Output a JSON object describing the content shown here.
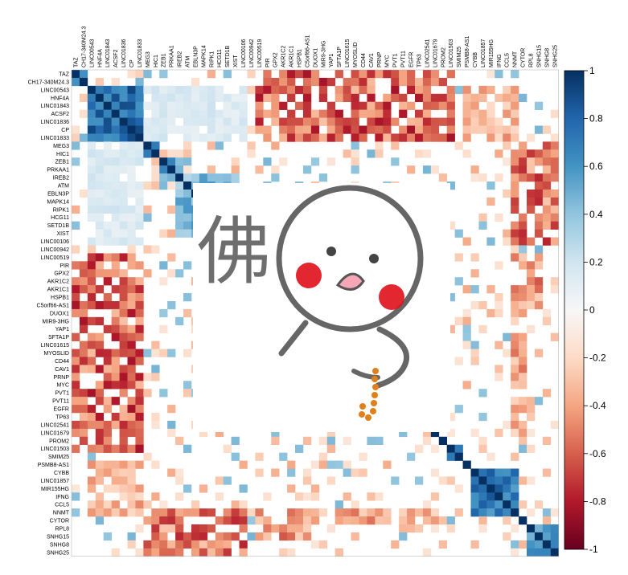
{
  "chart_data": {
    "type": "heatmap",
    "title": "",
    "xlabel": "",
    "ylabel": "",
    "labels": [
      "TAZ",
      "CH17-340M24.3",
      "LINC00543",
      "HNF4A",
      "LINC01843",
      "ACSF2",
      "LINC01836",
      "CP",
      "LINC01833",
      "MEG3",
      "HIC1",
      "ZEB1",
      "PRKAA1",
      "IREB2",
      "ATM",
      "EBLN3P",
      "MAPK14",
      "RIPK1",
      "HCG11",
      "SETD1B",
      "XIST",
      "LINC00106",
      "LINC00942",
      "LINC00519",
      "PIR",
      "GPX2",
      "AKR1C2",
      "AKR1C1",
      "HSPB1",
      "C5orf66-AS1",
      "DUOX1",
      "MIR9-3HG",
      "YAP1",
      "SFTA1P",
      "LINC01615",
      "MYOSLID",
      "CD44",
      "CAV1",
      "PRNP",
      "MYC",
      "PVT1",
      "PVT11",
      "EGFR",
      "TP63",
      "LINC02541",
      "LINC01679",
      "PROM2",
      "LINC01503",
      "SMIM25",
      "PSMB8-AS1",
      "CYBB",
      "LINC01857",
      "MIR155HG",
      "IFNG",
      "CCL5",
      "NNMT",
      "CYTOR",
      "RPL8",
      "SNHG15",
      "SNHG8",
      "SNHG25"
    ],
    "groups": [
      {
        "start": 0,
        "end": 1,
        "sign": 1,
        "strength": 0.55
      },
      {
        "start": 2,
        "end": 8,
        "sign": 1,
        "strength": 0.6
      },
      {
        "start": 9,
        "end": 10,
        "sign": 1,
        "strength": 0.7
      },
      {
        "start": 11,
        "end": 13,
        "sign": 1,
        "strength": 0.4
      },
      {
        "start": 13,
        "end": 20,
        "sign": 1,
        "strength": 0.25
      },
      {
        "start": 47,
        "end": 48,
        "sign": 1,
        "strength": 0.6
      },
      {
        "start": 50,
        "end": 55,
        "sign": 1,
        "strength": 0.55
      },
      {
        "start": 57,
        "end": 60,
        "sign": 1,
        "strength": 0.35
      }
    ],
    "blocks": [
      {
        "rows": [
          0,
          8
        ],
        "cols": [
          24,
          47
        ],
        "sign": -1,
        "strength": 0.6
      },
      {
        "rows": [
          23,
          47
        ],
        "cols": [
          2,
          8
        ],
        "sign": -1,
        "strength": 0.6
      },
      {
        "rows": [
          9,
          21
        ],
        "cols": [
          55,
          60
        ],
        "sign": -1,
        "strength": 0.55
      },
      {
        "rows": [
          55,
          60
        ],
        "cols": [
          9,
          21
        ],
        "sign": -1,
        "strength": 0.55
      },
      {
        "rows": [
          23,
          30
        ],
        "cols": [
          55,
          58
        ],
        "sign": -1,
        "strength": 0.45
      },
      {
        "rows": [
          49,
          55
        ],
        "cols": [
          2,
          8
        ],
        "sign": -1,
        "strength": 0.35
      },
      {
        "rows": [
          55,
          56
        ],
        "cols": [
          23,
          46
        ],
        "sign": -1,
        "strength": 0.4
      },
      {
        "rows": [
          9,
          21
        ],
        "cols": [
          2,
          8
        ],
        "sign": 1,
        "strength": 0.15
      }
    ],
    "density": 0.5,
    "colorbar": {
      "ticks": [
        1,
        0.8,
        0.6,
        0.4,
        0.2,
        0,
        -0.2,
        -0.4,
        -0.6,
        -0.8,
        -1
      ]
    },
    "colors": {
      "positive": "#053061",
      "zero": "#f7f7f7",
      "negative": "#67001f",
      "diagonal": "#053061"
    },
    "overlay": {
      "caption": "佛",
      "icon": "cartoon-figure-with-prayer-beads-icon"
    }
  }
}
